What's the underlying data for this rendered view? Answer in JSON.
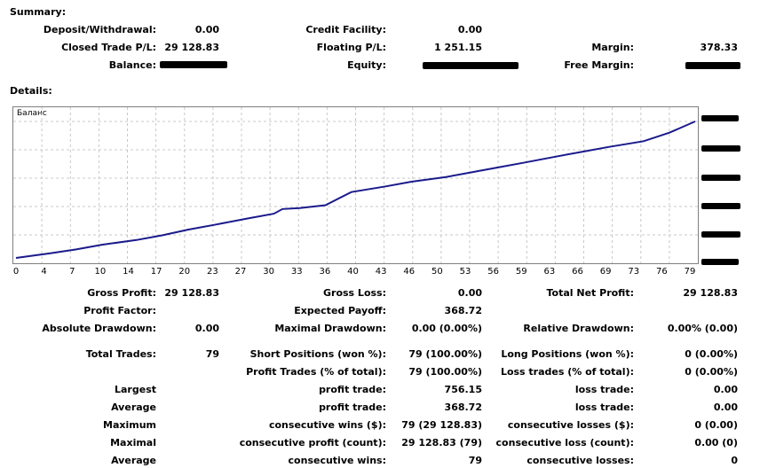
{
  "summary": {
    "heading": "Summary:",
    "deposit_label": "Deposit/Withdrawal:",
    "deposit_value": "0.00",
    "credit_label": "Credit Facility:",
    "credit_value": "0.00",
    "closed_pl_label": "Closed Trade P/L:",
    "closed_pl_value": "29 128.83",
    "floating_pl_label": "Floating P/L:",
    "floating_pl_value": "1 251.15",
    "margin_label": "Margin:",
    "margin_value": "378.33",
    "balance_label": "Balance:",
    "equity_label": "Equity:",
    "free_margin_label": "Free Margin:"
  },
  "details": {
    "heading": "Details:"
  },
  "chart_data": {
    "type": "line",
    "series": [
      {
        "name": "Баланс",
        "color": "#1a1a8c",
        "x": [
          0,
          4,
          7,
          10,
          14,
          17,
          20,
          23,
          27,
          30,
          31,
          33,
          36,
          39,
          43,
          46,
          50,
          53,
          56,
          59,
          63,
          66,
          69,
          73,
          76,
          79
        ],
        "y": [
          0.0,
          0.05,
          0.09,
          0.14,
          0.19,
          0.24,
          0.3,
          0.35,
          0.42,
          0.47,
          0.52,
          0.53,
          0.56,
          0.7,
          0.76,
          0.81,
          0.86,
          0.91,
          0.96,
          1.01,
          1.08,
          1.13,
          1.18,
          1.24,
          1.33,
          1.45
        ]
      }
    ],
    "x_ticks": [
      "0",
      "4",
      "7",
      "10",
      "14",
      "17",
      "20",
      "23",
      "27",
      "30",
      "33",
      "36",
      "40",
      "43",
      "46",
      "50",
      "53",
      "56",
      "59",
      "63",
      "66",
      "69",
      "73",
      "76",
      "79"
    ],
    "xlim": [
      0,
      79
    ],
    "grid": true,
    "y_tick_labels_redacted": true
  },
  "stats": {
    "gross_profit_label": "Gross Profit:",
    "gross_profit_value": "29 128.83",
    "gross_loss_label": "Gross Loss:",
    "gross_loss_value": "0.00",
    "total_net_profit_label": "Total Net Profit:",
    "total_net_profit_value": "29 128.83",
    "profit_factor_label": "Profit Factor:",
    "expected_payoff_label": "Expected Payoff:",
    "expected_payoff_value": "368.72",
    "absolute_drawdown_label": "Absolute Drawdown:",
    "absolute_drawdown_value": "0.00",
    "maximal_drawdown_label": "Maximal Drawdown:",
    "maximal_drawdown_value": "0.00 (0.00%)",
    "relative_drawdown_label": "Relative Drawdown:",
    "relative_drawdown_value": "0.00% (0.00)",
    "total_trades_label": "Total Trades:",
    "total_trades_value": "79",
    "short_positions_label": "Short Positions (won %):",
    "short_positions_value": "79 (100.00%)",
    "long_positions_label": "Long Positions (won %):",
    "long_positions_value": "0 (0.00%)",
    "profit_trades_label": "Profit Trades (% of total):",
    "profit_trades_value": "79 (100.00%)",
    "loss_trades_label": "Loss trades (% of total):",
    "loss_trades_value": "0 (0.00%)",
    "largest_label": "Largest",
    "largest_profit_label": "profit trade:",
    "largest_profit_value": "756.15",
    "largest_loss_label": "loss trade:",
    "largest_loss_value": "0.00",
    "average_label": "Average",
    "average_profit_label": "profit trade:",
    "average_profit_value": "368.72",
    "average_loss_label": "loss trade:",
    "average_loss_value": "0.00",
    "maximum_label": "Maximum",
    "max_cons_wins_label": "consecutive wins ($):",
    "max_cons_wins_value": "79 (29 128.83)",
    "max_cons_losses_label": "consecutive losses ($):",
    "max_cons_losses_value": "0 (0.00)",
    "maximal_label": "Maximal",
    "maximal_cons_profit_label": "consecutive profit (count):",
    "maximal_cons_profit_value": "29 128.83 (79)",
    "maximal_cons_loss_label": "consecutive loss (count):",
    "maximal_cons_loss_value": "0.00 (0)",
    "average2_label": "Average",
    "avg_cons_wins_label": "consecutive wins:",
    "avg_cons_wins_value": "79",
    "avg_cons_losses_label": "consecutive losses:",
    "avg_cons_losses_value": "0"
  }
}
